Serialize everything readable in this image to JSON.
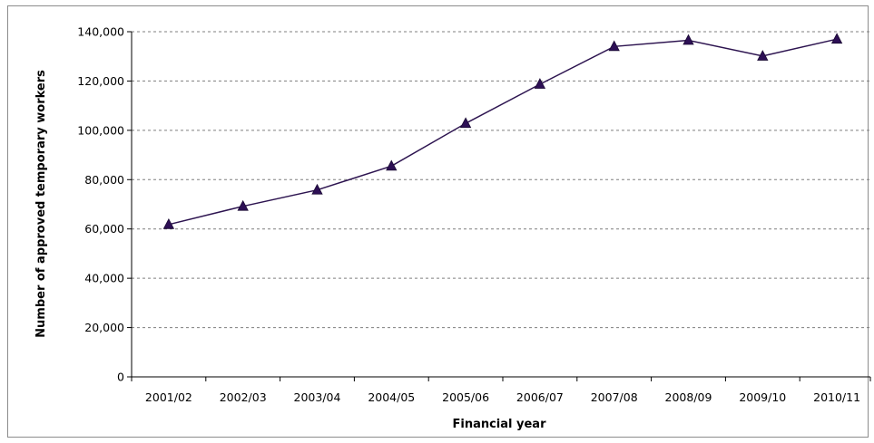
{
  "chart_data": {
    "type": "line",
    "categories": [
      "2001/02",
      "2002/03",
      "2003/04",
      "2004/05",
      "2005/06",
      "2006/07",
      "2007/08",
      "2008/09",
      "2009/10",
      "2010/11"
    ],
    "series": [
      {
        "values": [
          61800,
          69200,
          75800,
          85500,
          102800,
          118700,
          134000,
          136500,
          130100,
          137000
        ]
      }
    ],
    "xlabel": "Financial year",
    "ylabel": "Number of approved temporary workers",
    "ylim": [
      0,
      140000
    ],
    "yticks": [
      0,
      20000,
      40000,
      60000,
      80000,
      100000,
      120000,
      140000
    ],
    "ytick_labels": [
      "0",
      "20,000",
      "40,000",
      "60,000",
      "80,000",
      "100,000",
      "120,000",
      "140,000"
    ],
    "grid": "horizontal dashed",
    "marker": "triangle",
    "line_color": "#2d1450",
    "marker_color": "#2d0f55"
  }
}
